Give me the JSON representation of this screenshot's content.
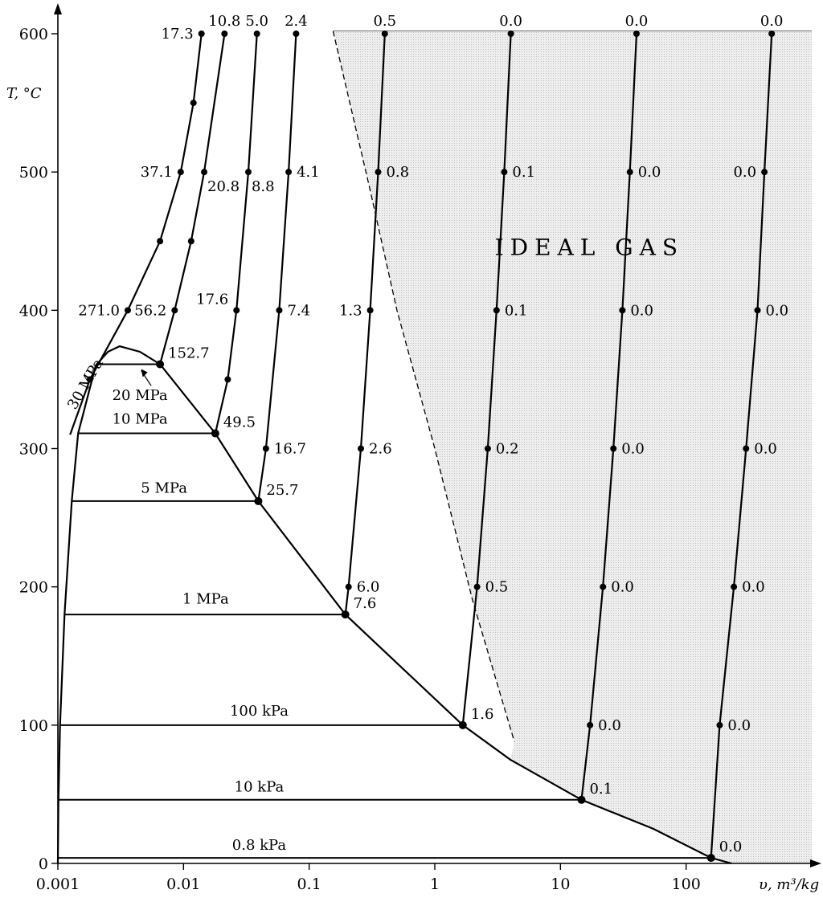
{
  "chart_data": {
    "type": "line",
    "xscale": "log",
    "xlim": [
      0.001,
      1000
    ],
    "ylim": [
      0,
      610
    ],
    "x_ticks": [
      {
        "value": 0.001,
        "label": "0.001"
      },
      {
        "value": 0.01,
        "label": "0.01"
      },
      {
        "value": 0.1,
        "label": "0.1"
      },
      {
        "value": 1,
        "label": "1"
      },
      {
        "value": 10,
        "label": "10"
      },
      {
        "value": 100,
        "label": "100"
      }
    ],
    "y_ticks": [
      {
        "value": 0,
        "label": "0"
      },
      {
        "value": 100,
        "label": "100"
      },
      {
        "value": 200,
        "label": "200"
      },
      {
        "value": 300,
        "label": "300"
      },
      {
        "value": 400,
        "label": "400"
      },
      {
        "value": 500,
        "label": "500"
      },
      {
        "value": 600,
        "label": "600"
      }
    ],
    "xlabel": "υ, m³/kg",
    "ylabel": "T, °C",
    "region_label": {
      "text": "IDEAL   GAS",
      "x": 3,
      "y": 440
    },
    "region_boundary": [
      {
        "x": 0.155,
        "y": 602
      },
      {
        "x": 0.3,
        "y": 490
      },
      {
        "x": 0.5,
        "y": 400
      },
      {
        "x": 1.0,
        "y": 300
      },
      {
        "x": 2.0,
        "y": 190
      },
      {
        "x": 4.3,
        "y": 88
      }
    ],
    "saturation_dome": [
      {
        "x": 0.001,
        "y": 0
      },
      {
        "x": 0.00101,
        "y": 45
      },
      {
        "x": 0.00104,
        "y": 100
      },
      {
        "x": 0.00113,
        "y": 180
      },
      {
        "x": 0.00129,
        "y": 262
      },
      {
        "x": 0.00145,
        "y": 311
      },
      {
        "x": 0.002,
        "y": 360
      },
      {
        "x": 0.0025,
        "y": 370
      },
      {
        "x": 0.0031,
        "y": 374
      },
      {
        "x": 0.0045,
        "y": 370
      },
      {
        "x": 0.0065,
        "y": 361
      },
      {
        "x": 0.0179,
        "y": 311
      },
      {
        "x": 0.0394,
        "y": 262
      },
      {
        "x": 0.194,
        "y": 180
      },
      {
        "x": 1.67,
        "y": 100
      },
      {
        "x": 4.0,
        "y": 75
      },
      {
        "x": 14.7,
        "y": 46
      },
      {
        "x": 55,
        "y": 25
      },
      {
        "x": 158,
        "y": 4
      },
      {
        "x": 230,
        "y": 0
      }
    ],
    "isobars": [
      {
        "name": "30 MPa",
        "points": [
          {
            "x": 0.00125,
            "y": 310
          },
          {
            "x": 0.0018,
            "y": 350
          },
          {
            "x": 0.0036,
            "y": 400
          },
          {
            "x": 0.0065,
            "y": 450
          },
          {
            "x": 0.0095,
            "y": 500
          },
          {
            "x": 0.012,
            "y": 550
          },
          {
            "x": 0.0139,
            "y": 600
          }
        ]
      },
      {
        "name": "20 MPa",
        "points": [
          {
            "x": 0.0065,
            "y": 361
          },
          {
            "x": 0.0085,
            "y": 400
          },
          {
            "x": 0.0115,
            "y": 450
          },
          {
            "x": 0.0146,
            "y": 500
          },
          {
            "x": 0.0212,
            "y": 600
          }
        ]
      },
      {
        "name": "10 MPa",
        "points": [
          {
            "x": 0.0179,
            "y": 311
          },
          {
            "x": 0.0225,
            "y": 350
          },
          {
            "x": 0.0264,
            "y": 400
          },
          {
            "x": 0.0328,
            "y": 500
          },
          {
            "x": 0.0384,
            "y": 600
          }
        ]
      },
      {
        "name": "5 MPa",
        "points": [
          {
            "x": 0.0394,
            "y": 262
          },
          {
            "x": 0.0453,
            "y": 300
          },
          {
            "x": 0.0578,
            "y": 400
          },
          {
            "x": 0.0686,
            "y": 500
          },
          {
            "x": 0.0787,
            "y": 600
          }
        ]
      },
      {
        "name": "1 MPa",
        "points": [
          {
            "x": 0.194,
            "y": 180
          },
          {
            "x": 0.206,
            "y": 200
          },
          {
            "x": 0.258,
            "y": 300
          },
          {
            "x": 0.306,
            "y": 400
          },
          {
            "x": 0.354,
            "y": 500
          },
          {
            "x": 0.4,
            "y": 600
          }
        ]
      },
      {
        "name": "100 kPa",
        "points": [
          {
            "x": 1.67,
            "y": 100
          },
          {
            "x": 2.17,
            "y": 200
          },
          {
            "x": 2.64,
            "y": 300
          },
          {
            "x": 3.1,
            "y": 400
          },
          {
            "x": 3.57,
            "y": 500
          },
          {
            "x": 4.03,
            "y": 600
          }
        ]
      },
      {
        "name": "10 kPa",
        "points": [
          {
            "x": 14.7,
            "y": 46
          },
          {
            "x": 17.2,
            "y": 100
          },
          {
            "x": 21.8,
            "y": 200
          },
          {
            "x": 26.4,
            "y": 300
          },
          {
            "x": 31.1,
            "y": 400
          },
          {
            "x": 35.7,
            "y": 500
          },
          {
            "x": 40.3,
            "y": 600
          }
        ]
      },
      {
        "name": "0.8 kPa",
        "points": [
          {
            "x": 158,
            "y": 4
          },
          {
            "x": 185,
            "y": 100
          },
          {
            "x": 240,
            "y": 200
          },
          {
            "x": 300,
            "y": 300
          },
          {
            "x": 370,
            "y": 400
          },
          {
            "x": 420,
            "y": 500
          },
          {
            "x": 480,
            "y": 600
          }
        ]
      }
    ],
    "tie_lines": [
      {
        "name": "20 MPa",
        "y": 361,
        "x1": 0.002,
        "x2": 0.0065,
        "label_x": 0.0045,
        "label_y": 335
      },
      {
        "name": "10 MPa",
        "y": 311,
        "x1": 0.00145,
        "x2": 0.0179,
        "label_x": 0.0045,
        "label_y": 318
      },
      {
        "name": "5 MPa",
        "y": 262,
        "x1": 0.00129,
        "x2": 0.0394,
        "label_x": 0.007,
        "label_y": 268
      },
      {
        "name": "1 MPa",
        "y": 180,
        "x1": 0.00113,
        "x2": 0.194,
        "label_x": 0.015,
        "label_y": 188
      },
      {
        "name": "100 kPa",
        "y": 100,
        "x1": 0.00104,
        "x2": 1.67,
        "label_x": 0.04,
        "label_y": 107
      },
      {
        "name": "10 kPa",
        "y": 46,
        "x1": 0.00101,
        "x2": 14.7,
        "label_x": 0.04,
        "label_y": 52
      },
      {
        "name": "0.8 kPa",
        "y": 4,
        "x1": 0.001,
        "x2": 158,
        "label_x": 0.04,
        "label_y": 10
      }
    ],
    "annotations": [
      {
        "text": "17.3",
        "x": 0.0139,
        "y": 600,
        "side": "left"
      },
      {
        "text": "10.8",
        "x": 0.0212,
        "y": 600,
        "side": "top"
      },
      {
        "text": "5.0",
        "x": 0.0384,
        "y": 600,
        "side": "top"
      },
      {
        "text": "2.4",
        "x": 0.0787,
        "y": 600,
        "side": "top"
      },
      {
        "text": "0.5",
        "x": 0.4,
        "y": 600,
        "side": "top"
      },
      {
        "text": "0.0",
        "x": 4.03,
        "y": 600,
        "side": "top"
      },
      {
        "text": "0.0",
        "x": 40.3,
        "y": 600,
        "side": "top"
      },
      {
        "text": "0.0",
        "x": 480,
        "y": 600,
        "side": "top"
      },
      {
        "text": "37.1",
        "x": 0.0095,
        "y": 500,
        "side": "left"
      },
      {
        "text": "20.8",
        "x": 0.0146,
        "y": 500,
        "side": "below-right"
      },
      {
        "text": "8.8",
        "x": 0.0328,
        "y": 500,
        "side": "below-right"
      },
      {
        "text": "4.1",
        "x": 0.0686,
        "y": 500,
        "side": "right"
      },
      {
        "text": "0.8",
        "x": 0.354,
        "y": 500,
        "side": "right"
      },
      {
        "text": "0.1",
        "x": 3.57,
        "y": 500,
        "side": "right"
      },
      {
        "text": "0.0",
        "x": 35.7,
        "y": 500,
        "side": "right"
      },
      {
        "text": "0.0",
        "x": 420,
        "y": 500,
        "side": "left"
      },
      {
        "text": "271.0",
        "x": 0.0036,
        "y": 400,
        "side": "left"
      },
      {
        "text": "56.2",
        "x": 0.0085,
        "y": 400,
        "side": "left"
      },
      {
        "text": "17.6",
        "x": 0.0264,
        "y": 400,
        "side": "left-up"
      },
      {
        "text": "7.4",
        "x": 0.0578,
        "y": 400,
        "side": "right"
      },
      {
        "text": "1.3",
        "x": 0.306,
        "y": 400,
        "side": "left"
      },
      {
        "text": "0.1",
        "x": 3.1,
        "y": 400,
        "side": "right"
      },
      {
        "text": "0.0",
        "x": 31.1,
        "y": 400,
        "side": "right"
      },
      {
        "text": "0.0",
        "x": 370,
        "y": 400,
        "side": "right"
      },
      {
        "text": "152.7",
        "x": 0.0065,
        "y": 361,
        "side": "right-up"
      },
      {
        "text": "49.5",
        "x": 0.0179,
        "y": 311,
        "side": "right-up"
      },
      {
        "text": "16.7",
        "x": 0.0453,
        "y": 300,
        "side": "right"
      },
      {
        "text": "2.6",
        "x": 0.258,
        "y": 300,
        "side": "right"
      },
      {
        "text": "0.2",
        "x": 2.64,
        "y": 300,
        "side": "right"
      },
      {
        "text": "0.0",
        "x": 26.4,
        "y": 300,
        "side": "right"
      },
      {
        "text": "0.0",
        "x": 300,
        "y": 300,
        "side": "right"
      },
      {
        "text": "25.7",
        "x": 0.0394,
        "y": 262,
        "side": "right-up"
      },
      {
        "text": "6.0",
        "x": 0.206,
        "y": 200,
        "side": "right"
      },
      {
        "text": "0.5",
        "x": 2.17,
        "y": 200,
        "side": "right"
      },
      {
        "text": "0.0",
        "x": 21.8,
        "y": 200,
        "side": "right"
      },
      {
        "text": "0.0",
        "x": 240,
        "y": 200,
        "side": "right"
      },
      {
        "text": "7.6",
        "x": 0.194,
        "y": 180,
        "side": "right-up"
      },
      {
        "text": "1.6",
        "x": 1.67,
        "y": 100,
        "side": "right-up"
      },
      {
        "text": "0.0",
        "x": 17.2,
        "y": 100,
        "side": "right"
      },
      {
        "text": "0.0",
        "x": 185,
        "y": 100,
        "side": "right"
      },
      {
        "text": "0.1",
        "x": 14.7,
        "y": 46,
        "side": "right-up"
      },
      {
        "text": "0.0",
        "x": 158,
        "y": 4,
        "side": "right-up"
      }
    ],
    "grid": false,
    "legend": "none"
  }
}
